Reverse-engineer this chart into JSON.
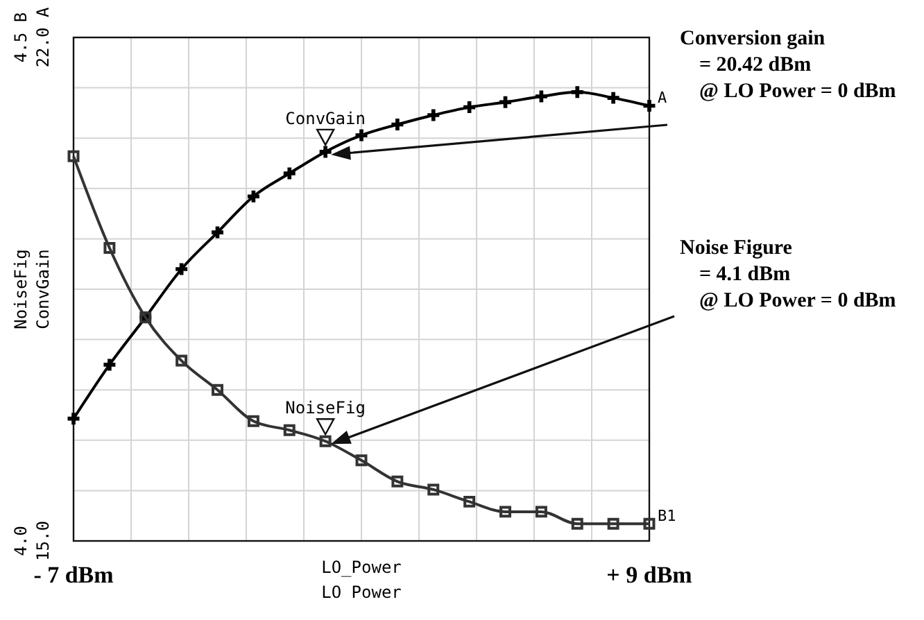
{
  "chart_data": {
    "type": "line",
    "x": [
      -7,
      -6,
      -5,
      -4,
      -3,
      -2,
      -1,
      0,
      1,
      2,
      3,
      4,
      5,
      6,
      7,
      8,
      9
    ],
    "xlim": [
      -7,
      9
    ],
    "xticks": [
      {
        "value": -7,
        "label": "- 7 dBm"
      },
      {
        "value": 9,
        "label": "+ 9 dBm"
      }
    ],
    "xlabel": "LO_Power\nLO Power",
    "ylabel": "NoiseFig",
    "y2label": "ConvGain",
    "ylim": [
      4.0,
      4.5
    ],
    "yticks": [
      {
        "value": 4.0,
        "label": "4.0"
      },
      {
        "value": 4.5,
        "label": "4.5 B"
      }
    ],
    "y2lim": [
      15,
      22
    ],
    "y2ticks": [
      {
        "value": 15,
        "label": "15.0"
      },
      {
        "value": 22,
        "label": "22.0 A"
      }
    ],
    "grid": true,
    "line_style": "solid",
    "series": [
      {
        "color": "#000000",
        "axis": "y2",
        "marker": "cross",
        "values": [
          16.7,
          17.45,
          18.11,
          18.78,
          19.29,
          19.79,
          20.11,
          20.41,
          20.64,
          20.79,
          20.92,
          21.03,
          21.1,
          21.18,
          21.24,
          21.16,
          21.05
        ]
      },
      {
        "color": "#333333",
        "axis": "y",
        "marker": "square",
        "values": [
          4.382,
          4.291,
          4.222,
          4.179,
          4.15,
          4.119,
          4.11,
          4.099,
          4.08,
          4.059,
          4.051,
          4.039,
          4.029,
          4.029,
          4.017,
          4.017,
          4.017
        ]
      }
    ],
    "annotations": [
      "ConvGain",
      {
        "text": "NoiseFig",
        "x": 0,
        "y": 4.099
      },
      "A",
      "B1",
      "Conversion gain\n= 20.42 dBm\n@ LO Power = 0 dBm",
      "Noise Figure\n= 4.1 dBm\n@ LO Power = 0 dBm"
    ]
  }
}
